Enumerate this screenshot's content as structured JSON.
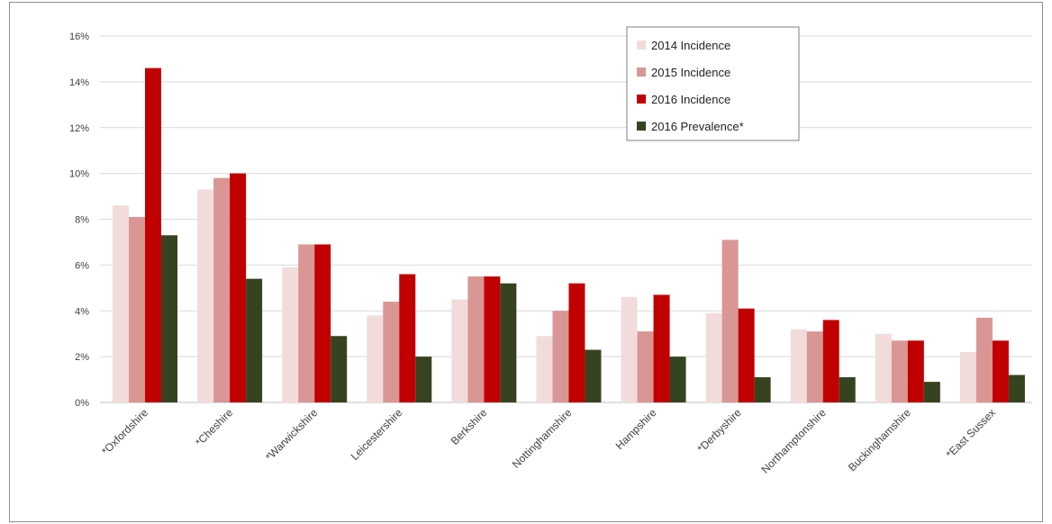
{
  "chart_data": {
    "type": "bar",
    "categories": [
      "*Oxfordshire",
      "*Cheshire",
      "*Warwickshire",
      "Leicestershire",
      "Berkshire",
      "Nottinghamshire",
      "Hampshire",
      "*Derbyshire",
      "Northamptonshire",
      "Buckinghamshire",
      "*East Sussex"
    ],
    "series": [
      {
        "name": "2014 Incidence",
        "color": "#f2dcdb",
        "values": [
          8.6,
          9.3,
          5.9,
          3.8,
          4.5,
          2.9,
          4.6,
          3.9,
          3.2,
          3.0,
          2.2
        ]
      },
      {
        "name": "2015 Incidence",
        "color": "#d99694",
        "values": [
          8.1,
          9.8,
          6.9,
          4.4,
          5.5,
          4.0,
          3.1,
          7.1,
          3.1,
          2.7,
          3.7
        ]
      },
      {
        "name": "2016 Incidence",
        "color": "#c00000",
        "values": [
          14.6,
          10.0,
          6.9,
          5.6,
          5.5,
          5.2,
          4.7,
          4.1,
          3.6,
          2.7,
          2.7
        ]
      },
      {
        "name": "2016 Prevalence*",
        "color": "#364320",
        "values": [
          7.3,
          5.4,
          2.9,
          2.0,
          5.2,
          2.3,
          2.0,
          1.1,
          1.1,
          0.9,
          1.2
        ]
      }
    ],
    "y_ticks": [
      "0%",
      "2%",
      "4%",
      "6%",
      "8%",
      "10%",
      "12%",
      "14%",
      "16%"
    ],
    "ylim": [
      0,
      16
    ],
    "grid": true,
    "legend_position": "top-right"
  }
}
